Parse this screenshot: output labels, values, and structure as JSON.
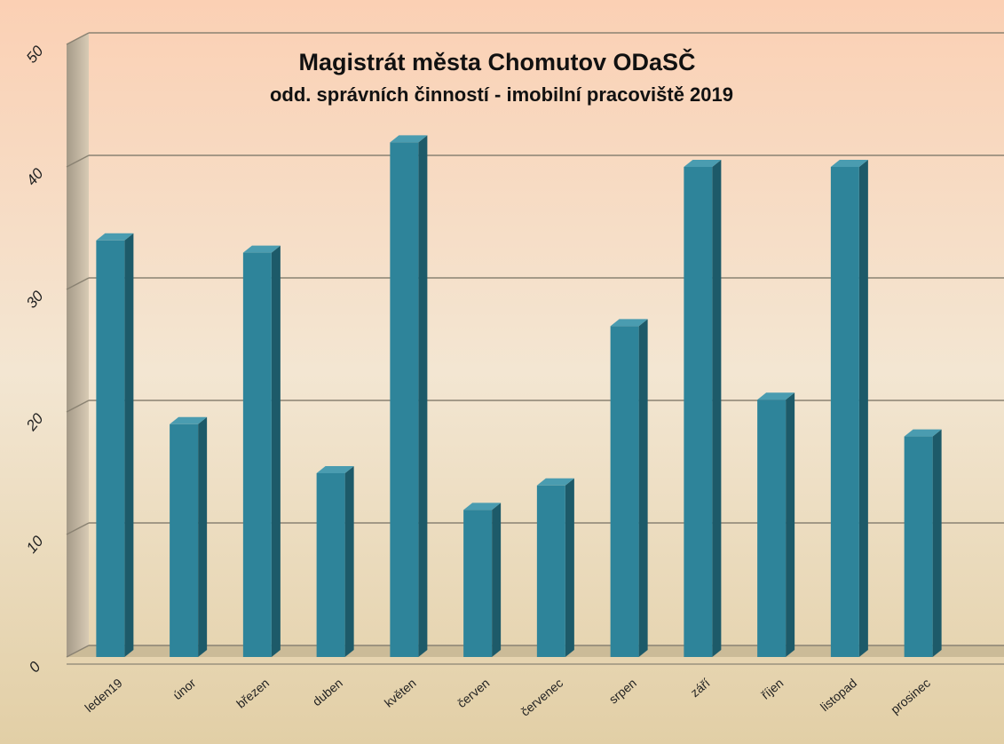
{
  "chart_data": {
    "type": "bar",
    "title": "Magistrát města Chomutov ODaSČ",
    "subtitle": "odd. správních činností - imobilní pracoviště 2019",
    "categories": [
      "leden19",
      "únor",
      "březen",
      "duben",
      "květen",
      "červen",
      "červenec",
      "srpen",
      "září",
      "říjen",
      "listopad",
      "prosinec"
    ],
    "values": [
      34,
      19,
      33,
      15,
      42,
      12,
      14,
      27,
      40,
      21,
      40,
      18
    ],
    "color": "#2e849a",
    "ylim": [
      0,
      50
    ],
    "yticks": [
      0,
      10,
      20,
      30,
      40,
      50
    ],
    "grid": true
  }
}
